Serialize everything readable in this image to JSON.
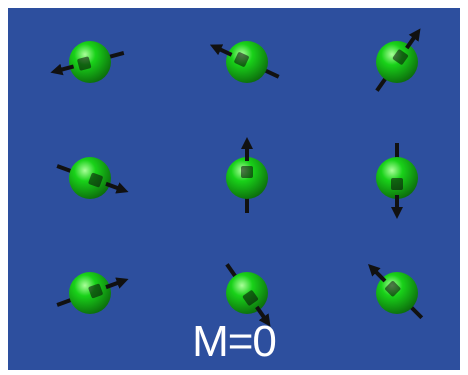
{
  "colors": {
    "background": "#2d4f9e",
    "border": "#ffffff",
    "sphere": "#19d219",
    "sphere_highlight": "#aaff9a",
    "sphere_shadow": "#0c6a0c",
    "arrow": "#111111",
    "caption": "#ffffff"
  },
  "caption": "M=0",
  "spins": [
    {
      "name": "spin-r1c1",
      "direction_deg": 165
    },
    {
      "name": "spin-r1c2",
      "direction_deg": 205
    },
    {
      "name": "spin-r1c3",
      "direction_deg": 305
    },
    {
      "name": "spin-r2c1",
      "direction_deg": 20
    },
    {
      "name": "spin-r2c2",
      "direction_deg": 270
    },
    {
      "name": "spin-r2c3",
      "direction_deg": 90
    },
    {
      "name": "spin-r3c1",
      "direction_deg": 340
    },
    {
      "name": "spin-r3c2",
      "direction_deg": 55
    },
    {
      "name": "spin-r3c3",
      "direction_deg": 225
    }
  ]
}
